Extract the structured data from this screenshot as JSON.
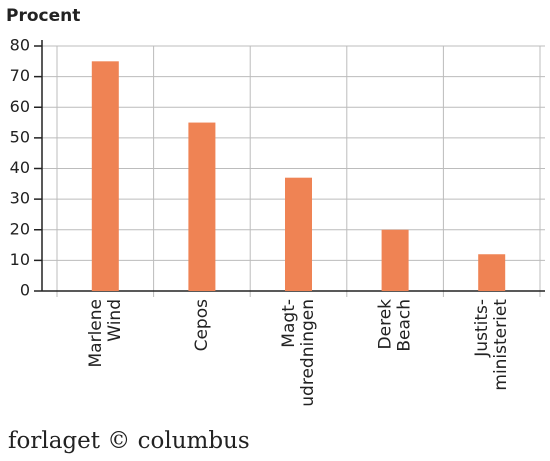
{
  "chart_data": {
    "type": "bar",
    "title": "Procent",
    "categories": [
      [
        "Marlene",
        "Wind"
      ],
      [
        "Cepos"
      ],
      [
        "Magt-",
        "udredningen"
      ],
      [
        "Derek",
        "Beach"
      ],
      [
        "Justits-",
        "ministeriet"
      ]
    ],
    "values": [
      75,
      55,
      37,
      20,
      12
    ],
    "color": "#ef8354",
    "ylim": [
      0,
      80
    ],
    "yticks": [
      0,
      10,
      20,
      30,
      40,
      50,
      60,
      70,
      80
    ],
    "grid": true
  },
  "footer": "forlaget © columbus"
}
